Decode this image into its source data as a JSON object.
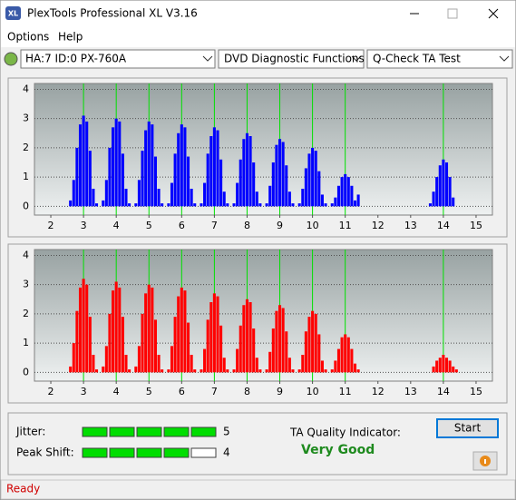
{
  "window": {
    "icon_text": "XL",
    "title": "PlexTools Professional XL V3.16"
  },
  "menu": [
    "Options",
    "Help"
  ],
  "toolbar": {
    "drive": "HA:7 ID:0  PX-760A",
    "function": "DVD Diagnostic Functions",
    "test": "Q-Check TA Test"
  },
  "chart_data": [
    {
      "type": "bar",
      "color": "#0000ff",
      "marker_color": "#00e000",
      "grid": true,
      "xlim": [
        1.5,
        15.5
      ],
      "ylim": [
        -0.3,
        4.2
      ],
      "xticks": [
        2,
        3,
        4,
        5,
        6,
        7,
        8,
        9,
        10,
        11,
        12,
        13,
        14,
        15
      ],
      "yticks": [
        0,
        1,
        2,
        3,
        4
      ],
      "markers": [
        3,
        4,
        5,
        6,
        7,
        8,
        9,
        10,
        11,
        14
      ],
      "x": [
        2.5,
        2.6,
        2.7,
        2.8,
        2.9,
        3.0,
        3.1,
        3.2,
        3.3,
        3.4,
        3.5,
        3.6,
        3.7,
        3.8,
        3.9,
        4.0,
        4.1,
        4.2,
        4.3,
        4.4,
        4.5,
        4.6,
        4.7,
        4.8,
        4.9,
        5.0,
        5.1,
        5.2,
        5.3,
        5.4,
        5.5,
        5.6,
        5.7,
        5.8,
        5.9,
        6.0,
        6.1,
        6.2,
        6.3,
        6.4,
        6.5,
        6.6,
        6.7,
        6.8,
        6.9,
        7.0,
        7.1,
        7.2,
        7.3,
        7.4,
        7.5,
        7.6,
        7.7,
        7.8,
        7.9,
        8.0,
        8.1,
        8.2,
        8.3,
        8.4,
        8.5,
        8.6,
        8.7,
        8.8,
        8.9,
        9.0,
        9.1,
        9.2,
        9.3,
        9.4,
        9.5,
        9.6,
        9.7,
        9.8,
        9.9,
        10.0,
        10.1,
        10.2,
        10.3,
        10.4,
        10.5,
        10.6,
        10.7,
        10.8,
        10.9,
        11.0,
        11.1,
        11.2,
        11.3,
        11.4,
        13.5,
        13.6,
        13.7,
        13.8,
        13.9,
        14.0,
        14.1,
        14.2,
        14.3,
        14.4
      ],
      "values": [
        0,
        0.2,
        0.9,
        2.0,
        2.8,
        3.1,
        2.9,
        1.9,
        0.6,
        0.1,
        0,
        0.2,
        0.9,
        2.0,
        2.7,
        3.0,
        2.9,
        1.8,
        0.6,
        0.1,
        0,
        0.1,
        0.9,
        1.9,
        2.6,
        2.9,
        2.8,
        1.7,
        0.6,
        0.1,
        0,
        0.1,
        0.8,
        1.8,
        2.5,
        2.8,
        2.7,
        1.7,
        0.6,
        0.1,
        0,
        0.1,
        0.8,
        1.8,
        2.4,
        2.7,
        2.6,
        1.6,
        0.5,
        0.1,
        0,
        0.1,
        0.8,
        1.6,
        2.3,
        2.5,
        2.4,
        1.5,
        0.5,
        0.1,
        0,
        0.1,
        0.7,
        1.5,
        2.1,
        2.3,
        2.2,
        1.4,
        0.5,
        0.1,
        0,
        0.1,
        0.6,
        1.3,
        1.8,
        2.0,
        1.9,
        1.2,
        0.4,
        0.1,
        0,
        0.1,
        0.3,
        0.7,
        1.0,
        1.1,
        1.0,
        0.7,
        0.2,
        0.4,
        0,
        0.1,
        0.5,
        1.0,
        1.4,
        1.6,
        1.5,
        1.0,
        0.3,
        0
      ]
    },
    {
      "type": "bar",
      "color": "#ff0000",
      "marker_color": "#00e000",
      "grid": true,
      "xlim": [
        1.5,
        15.5
      ],
      "ylim": [
        -0.3,
        4.2
      ],
      "xticks": [
        2,
        3,
        4,
        5,
        6,
        7,
        8,
        9,
        10,
        11,
        12,
        13,
        14,
        15
      ],
      "yticks": [
        0,
        1,
        2,
        3,
        4
      ],
      "markers": [
        3,
        4,
        5,
        6,
        7,
        8,
        9,
        10,
        11,
        14
      ],
      "x": [
        2.5,
        2.6,
        2.7,
        2.8,
        2.9,
        3.0,
        3.1,
        3.2,
        3.3,
        3.4,
        3.5,
        3.6,
        3.7,
        3.8,
        3.9,
        4.0,
        4.1,
        4.2,
        4.3,
        4.4,
        4.5,
        4.6,
        4.7,
        4.8,
        4.9,
        5.0,
        5.1,
        5.2,
        5.3,
        5.4,
        5.5,
        5.6,
        5.7,
        5.8,
        5.9,
        6.0,
        6.1,
        6.2,
        6.3,
        6.4,
        6.5,
        6.6,
        6.7,
        6.8,
        6.9,
        7.0,
        7.1,
        7.2,
        7.3,
        7.4,
        7.5,
        7.6,
        7.7,
        7.8,
        7.9,
        8.0,
        8.1,
        8.2,
        8.3,
        8.4,
        8.5,
        8.6,
        8.7,
        8.8,
        8.9,
        9.0,
        9.1,
        9.2,
        9.3,
        9.4,
        9.5,
        9.6,
        9.7,
        9.8,
        9.9,
        10.0,
        10.1,
        10.2,
        10.3,
        10.4,
        10.5,
        10.6,
        10.7,
        10.8,
        10.9,
        11.0,
        11.1,
        11.2,
        11.3,
        11.4,
        13.5,
        13.6,
        13.7,
        13.8,
        13.9,
        14.0,
        14.1,
        14.2,
        14.3,
        14.4
      ],
      "values": [
        0,
        0.2,
        1.0,
        2.1,
        2.9,
        3.2,
        3.0,
        1.9,
        0.6,
        0.1,
        0,
        0.2,
        0.9,
        2.0,
        2.8,
        3.1,
        2.9,
        1.9,
        0.6,
        0.1,
        0,
        0.2,
        0.9,
        2.0,
        2.7,
        3.0,
        2.9,
        1.8,
        0.6,
        0.1,
        0,
        0.1,
        0.9,
        1.9,
        2.6,
        2.9,
        2.8,
        1.7,
        0.6,
        0.1,
        0,
        0.1,
        0.8,
        1.8,
        2.4,
        2.7,
        2.6,
        1.6,
        0.5,
        0.1,
        0,
        0.1,
        0.8,
        1.6,
        2.3,
        2.5,
        2.4,
        1.5,
        0.5,
        0.1,
        0,
        0.1,
        0.7,
        1.5,
        2.1,
        2.3,
        2.2,
        1.4,
        0.5,
        0.1,
        0,
        0.1,
        0.6,
        1.4,
        1.9,
        2.1,
        2.0,
        1.3,
        0.4,
        0.1,
        0,
        0.1,
        0.4,
        0.8,
        1.2,
        1.3,
        1.2,
        0.8,
        0.3,
        0.1,
        0,
        0,
        0.2,
        0.4,
        0.5,
        0.6,
        0.5,
        0.4,
        0.2,
        0.1
      ]
    }
  ],
  "meters": [
    {
      "label": "Jitter:",
      "value": 5,
      "segments": 5
    },
    {
      "label": "Peak Shift:",
      "value": 4,
      "segments": 5
    }
  ],
  "quality": {
    "label": "TA Quality Indicator:",
    "value": "Very Good"
  },
  "buttons": {
    "start": "Start"
  },
  "status": "Ready"
}
